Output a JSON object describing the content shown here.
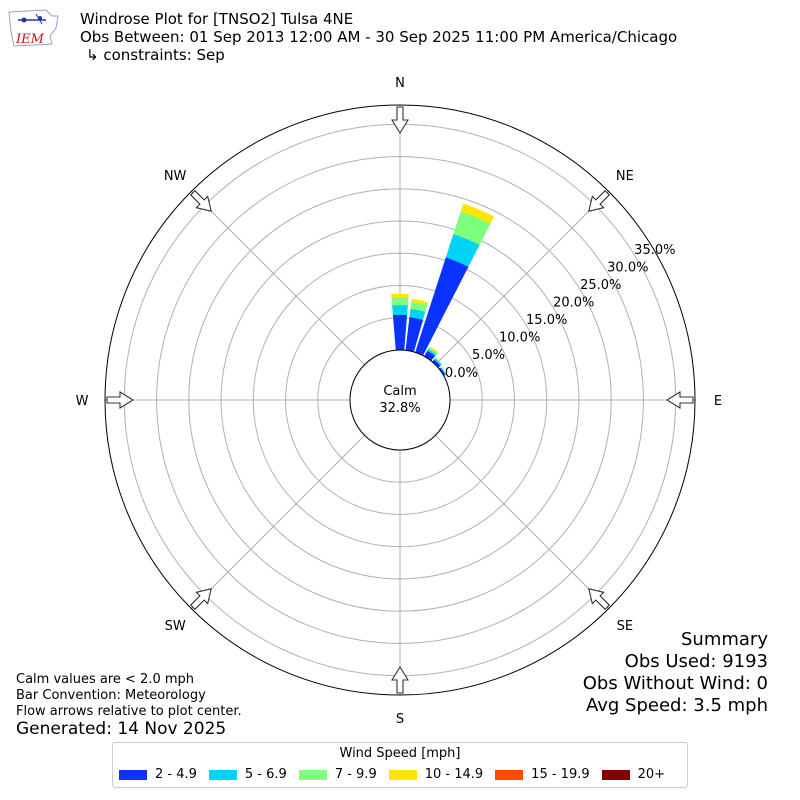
{
  "header": {
    "title": "Windrose Plot for [TNSO2] Tulsa 4NE",
    "period": "Obs Between: 01 Sep 2013 12:00 AM - 30 Sep 2025 11:00 PM America/Chicago",
    "constraints": "↳ constraints: Sep",
    "logo_text": "IEM"
  },
  "chart_data": {
    "type": "windrose",
    "title": "Windrose Plot for [TNSO2] Tulsa 4NE",
    "directions": [
      "N",
      "NE",
      "E",
      "SE",
      "S",
      "SW",
      "W",
      "NW"
    ],
    "radial_ticks": [
      "0.0%",
      "5.0%",
      "10.0%",
      "15.0%",
      "20.0%",
      "25.0%",
      "30.0%",
      "35.0%"
    ],
    "radial_max": 38.0,
    "calm_label": "Calm",
    "calm_value": "32.8%",
    "calm_percent": 32.8,
    "legend_title": "Wind Speed [mph]",
    "speed_bins": [
      {
        "label": "2 - 4.9",
        "color": "#0a33ff"
      },
      {
        "label": "5 - 6.9",
        "color": "#00d4f5"
      },
      {
        "label": "7 - 9.9",
        "color": "#7fff7e"
      },
      {
        "label": "10 - 14.9",
        "color": "#ffe600"
      },
      {
        "label": "15 - 19.9",
        "color": "#ff4a00"
      },
      {
        "label": "20+",
        "color": "#800000"
      }
    ],
    "sectors": [
      {
        "direction_deg": 0,
        "values": [
          5.5,
          1.5,
          1.2,
          0.5,
          0,
          0
        ]
      },
      {
        "direction_deg": 11.25,
        "values": [
          5.2,
          1.3,
          1.1,
          0.4,
          0,
          0
        ]
      },
      {
        "direction_deg": 22.5,
        "values": [
          15.5,
          3.8,
          3.7,
          1.2,
          0,
          0
        ]
      },
      {
        "direction_deg": 33.75,
        "values": [
          1.0,
          0.3,
          0.3,
          0.1,
          0,
          0
        ]
      },
      {
        "direction_deg": 45,
        "values": [
          0.5,
          0.2,
          0.1,
          0.0,
          0,
          0
        ]
      },
      {
        "direction_deg": 56.25,
        "values": [
          0.3,
          0.1,
          0.0,
          0.0,
          0,
          0
        ]
      }
    ]
  },
  "notes": {
    "calm": "Calm values are < 2.0 mph",
    "convention": "Bar Convention: Meteorology",
    "flow": "Flow arrows relative to plot center.",
    "generated": "Generated: 14 Nov 2025"
  },
  "summary": {
    "title": "Summary",
    "obs_used": "Obs Used: 9193",
    "obs_without_wind": "Obs Without Wind: 0",
    "avg_speed": "Avg Speed: 3.5 mph"
  }
}
